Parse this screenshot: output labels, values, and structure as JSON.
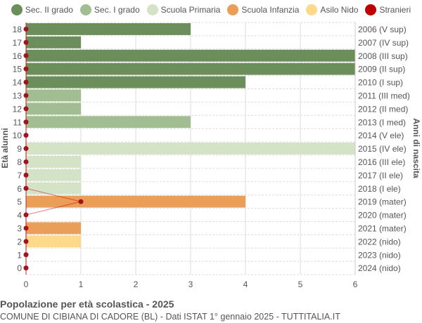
{
  "chart_data": {
    "type": "bar",
    "orientation": "horizontal",
    "title": "Popolazione per età scolastica - 2025",
    "subtitle": "COMUNE DI CIBIANA DI CADORE (BL) - Dati ISTAT 1° gennaio 2025 - TUTTITALIA.IT",
    "ylabel": "Età alunni",
    "ylabel_right": "Anni di nascita",
    "xlim": [
      0,
      6
    ],
    "xticks": [
      "0",
      "1",
      "2",
      "3",
      "4",
      "5",
      "6"
    ],
    "grid": true,
    "legend_position": "top",
    "legend": [
      {
        "name": "Sec. II grado",
        "color": "#6b8e5b"
      },
      {
        "name": "Sec. I grado",
        "color": "#a1bd91"
      },
      {
        "name": "Scuola Primaria",
        "color": "#d4e2c6"
      },
      {
        "name": "Scuola Infanzia",
        "color": "#eb9e58"
      },
      {
        "name": "Asilo Nido",
        "color": "#fdd98c"
      },
      {
        "name": "Stranieri",
        "color": "#c00000"
      }
    ],
    "ages": [
      18,
      17,
      16,
      15,
      14,
      13,
      12,
      11,
      10,
      9,
      8,
      7,
      6,
      5,
      4,
      3,
      2,
      1,
      0
    ],
    "birth_years": [
      "2006 (V sup)",
      "2007 (IV sup)",
      "2008 (III sup)",
      "2009 (II sup)",
      "2010 (I sup)",
      "2011 (III med)",
      "2012 (II med)",
      "2013 (I med)",
      "2014 (V ele)",
      "2015 (IV ele)",
      "2016 (III ele)",
      "2017 (II ele)",
      "2018 (I ele)",
      "2019 (mater)",
      "2020 (mater)",
      "2021 (mater)",
      "2022 (nido)",
      "2023 (nido)",
      "2024 (nido)"
    ],
    "values": [
      3,
      1,
      6,
      6,
      4,
      1,
      1,
      3,
      0,
      6,
      1,
      1,
      1,
      4,
      0,
      1,
      1,
      0,
      0
    ],
    "category": [
      0,
      0,
      0,
      0,
      0,
      1,
      1,
      1,
      2,
      2,
      2,
      2,
      2,
      3,
      3,
      3,
      4,
      4,
      4
    ],
    "stranieri": [
      0,
      0,
      0,
      0,
      0,
      0,
      0,
      0,
      0,
      0,
      0,
      0,
      0,
      1,
      0,
      0,
      0,
      0,
      0
    ]
  }
}
